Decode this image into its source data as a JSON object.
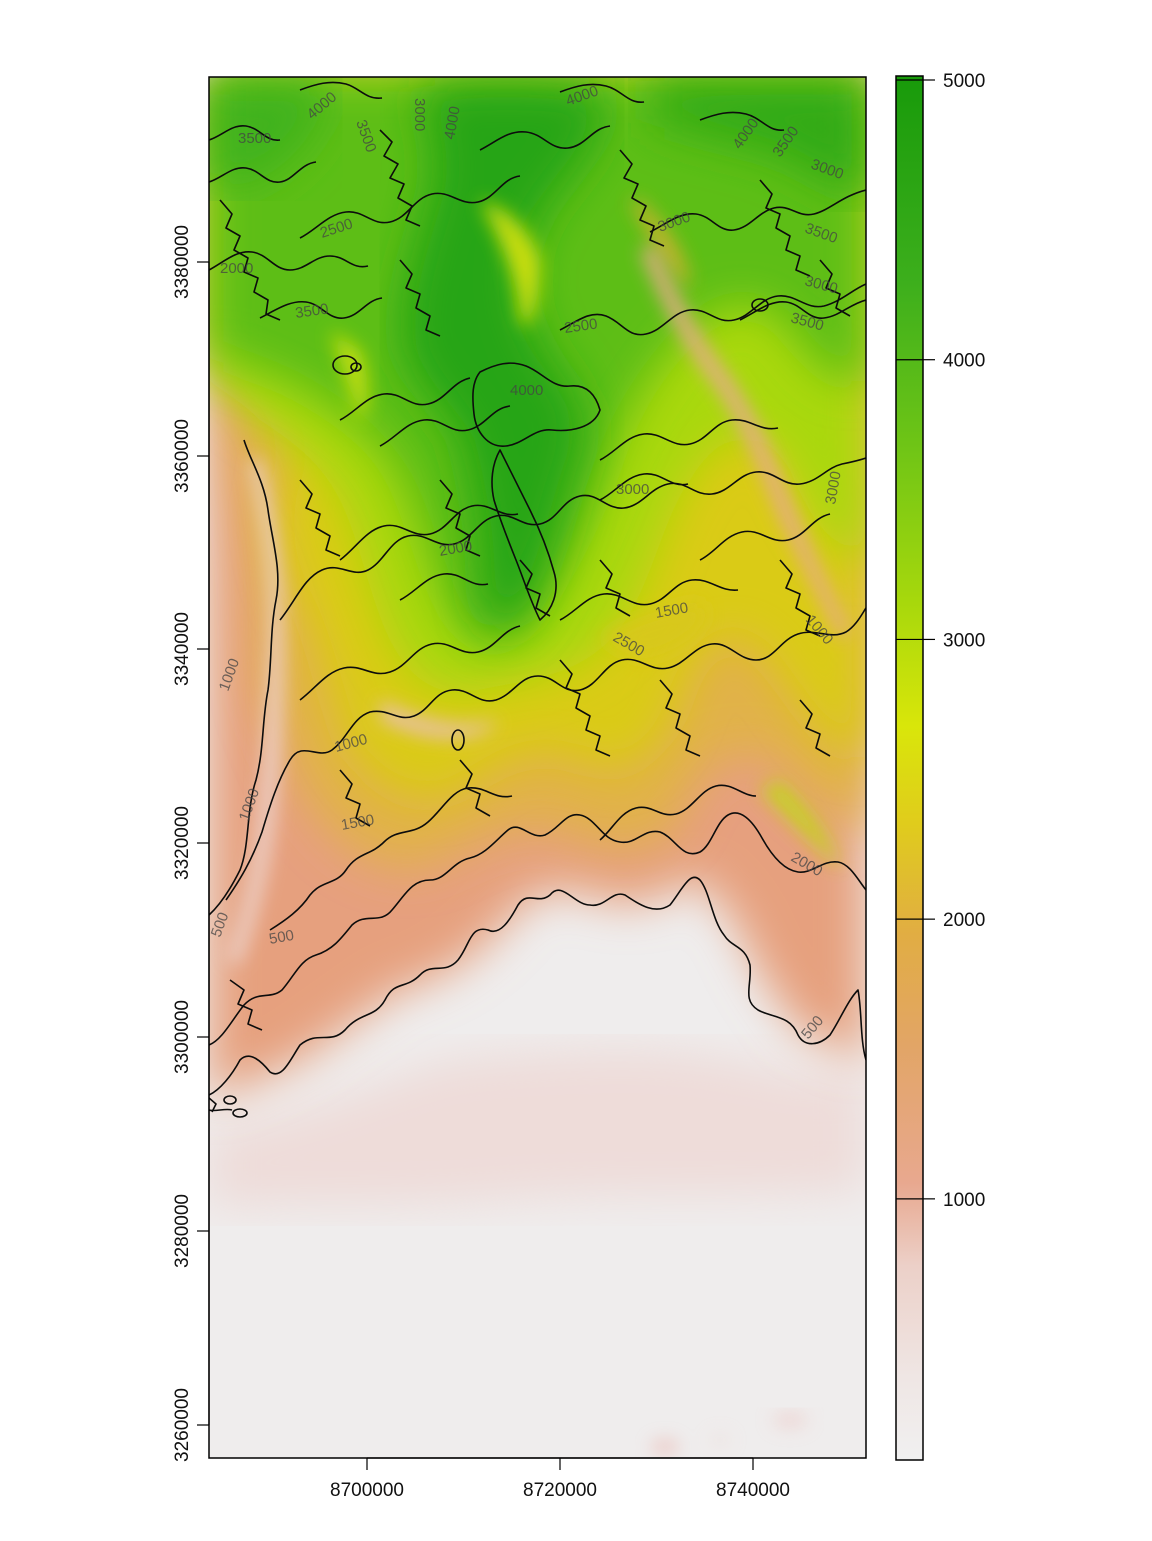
{
  "map": {
    "x_ticks": [
      "8700000",
      "8720000",
      "8740000"
    ],
    "y_ticks": [
      "3260000",
      "3280000",
      "3300000",
      "3320000",
      "3340000",
      "3360000",
      "3380000"
    ],
    "legend_ticks": [
      "1000",
      "2000",
      "3000",
      "4000",
      "5000"
    ],
    "legend_range": [
      70,
      5000
    ],
    "colors": {
      "low": "#f0f0f0",
      "pink": "#f0d4cf",
      "salmon": "#e7a08a",
      "orange": "#e2a84e",
      "yellow": "#dfe60a",
      "light_green": "#9dd30a",
      "green": "#43b21a",
      "dark_green": "#1a9a0a"
    },
    "contour_labels": [
      {
        "text": "4000",
        "id": "c1"
      },
      {
        "text": "3500",
        "id": "c2"
      },
      {
        "text": "3000",
        "id": "c3"
      },
      {
        "text": "4000",
        "id": "c4"
      },
      {
        "text": "3500",
        "id": "c5"
      },
      {
        "text": "4000",
        "id": "c6"
      },
      {
        "text": "4000",
        "id": "c7"
      },
      {
        "text": "3500",
        "id": "c8"
      },
      {
        "text": "3000",
        "id": "c9"
      },
      {
        "text": "2500",
        "id": "c10"
      },
      {
        "text": "2000",
        "id": "c11"
      },
      {
        "text": "3000",
        "id": "c12"
      },
      {
        "text": "3500",
        "id": "c13"
      },
      {
        "text": "3000",
        "id": "c14"
      },
      {
        "text": "3500",
        "id": "c15"
      },
      {
        "text": "2500",
        "id": "c16"
      },
      {
        "text": "4000",
        "id": "c17"
      },
      {
        "text": "3500",
        "id": "c18"
      },
      {
        "text": "3000",
        "id": "c19"
      },
      {
        "text": "3000",
        "id": "c20"
      },
      {
        "text": "1500",
        "id": "c21"
      },
      {
        "text": "2500",
        "id": "c22"
      },
      {
        "text": "1000",
        "id": "c23"
      },
      {
        "text": "1000",
        "id": "c24"
      },
      {
        "text": "1000",
        "id": "c25"
      },
      {
        "text": "1500",
        "id": "c26"
      },
      {
        "text": "2000",
        "id": "c27"
      },
      {
        "text": "500",
        "id": "c28"
      },
      {
        "text": "500",
        "id": "c29"
      },
      {
        "text": "500",
        "id": "c30"
      },
      {
        "text": "1000",
        "id": "c31"
      },
      {
        "text": "2000",
        "id": "c32"
      }
    ]
  }
}
